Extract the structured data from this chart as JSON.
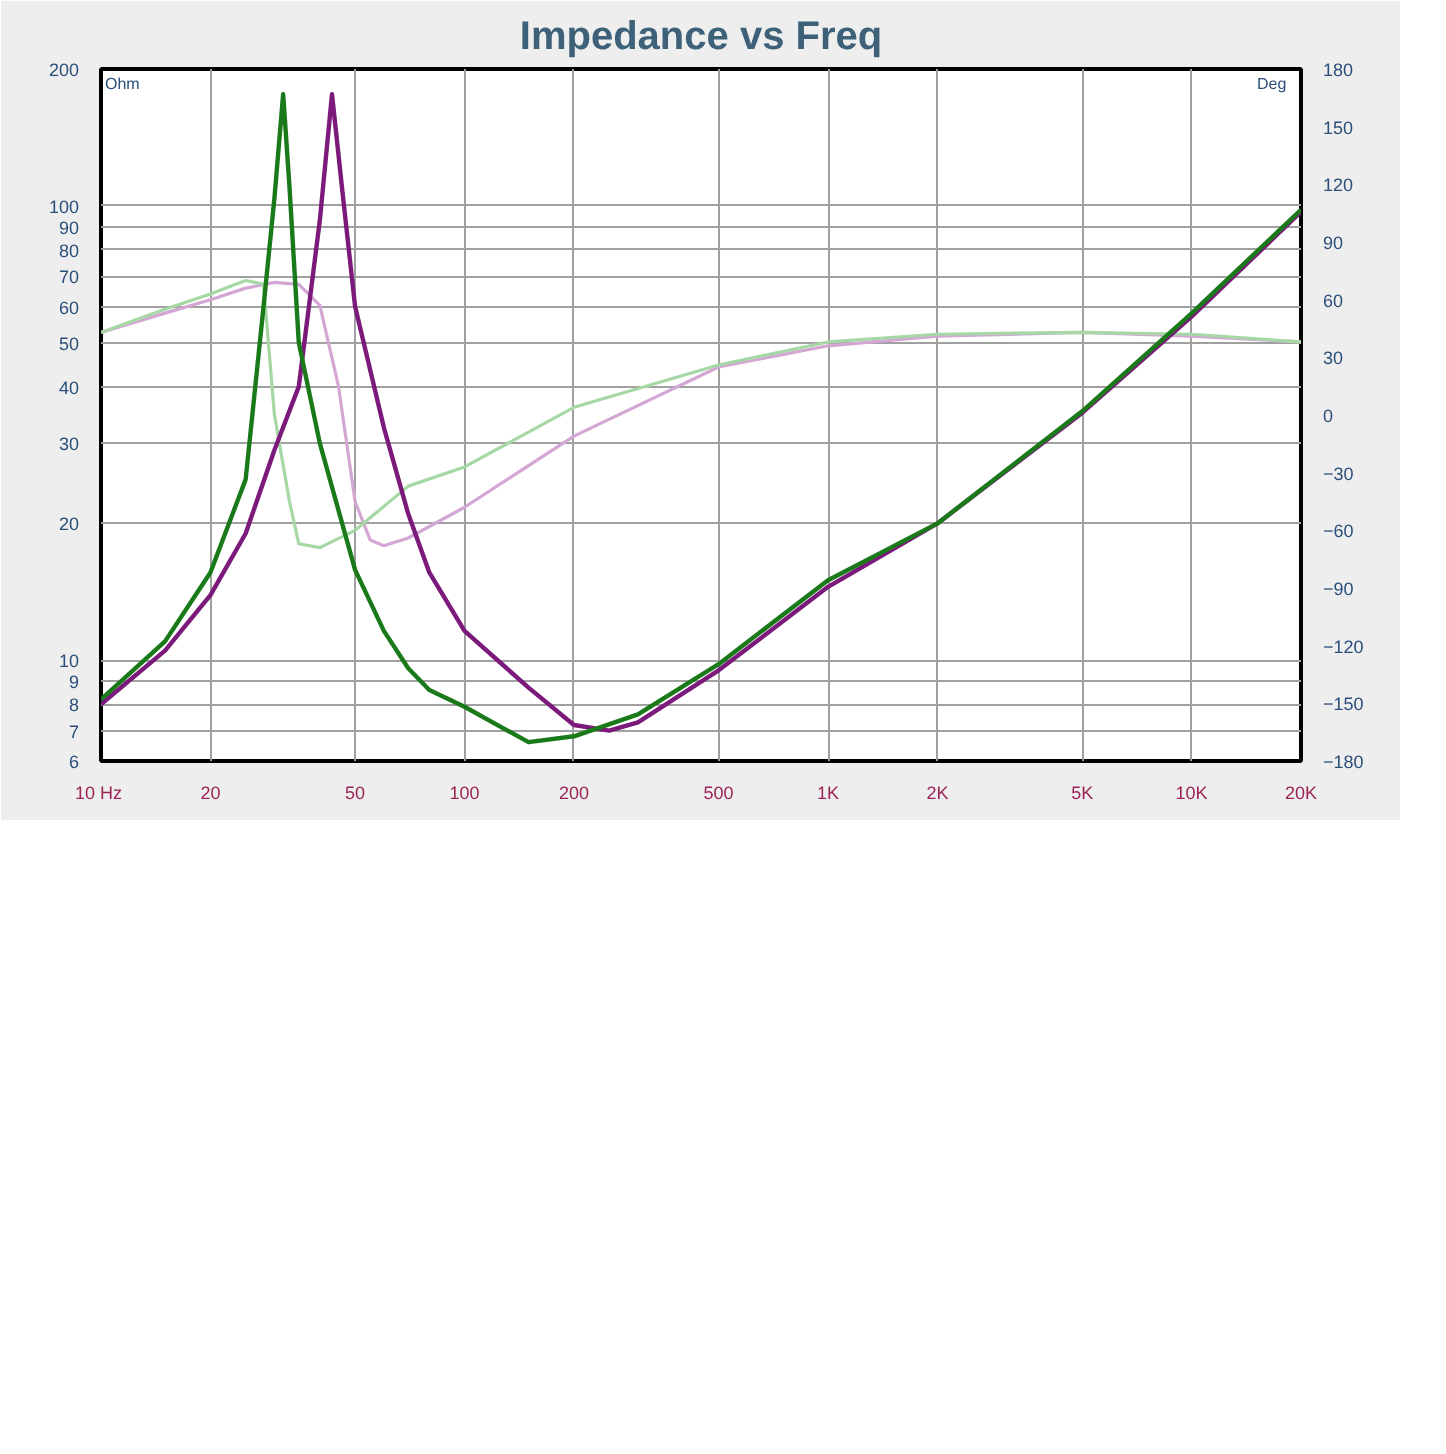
{
  "chart_data": {
    "type": "line",
    "title": "Impedance vs Freq",
    "ylabel": "Ohm",
    "y2label": "Deg",
    "log": "xy",
    "grid": true,
    "marker": "none",
    "line_style": "solid",
    "xlim": [
      10,
      20000
    ],
    "xticks": [
      {
        "value": 10,
        "label": "10  Hz"
      },
      20,
      50,
      100,
      200,
      500,
      {
        "value": 1000,
        "label": "1K"
      },
      {
        "value": 2000,
        "label": "2K"
      },
      {
        "value": 5000,
        "label": "5K"
      },
      {
        "value": 10000,
        "label": "10K"
      },
      {
        "value": 20000,
        "label": "20K"
      }
    ],
    "ylim": [
      6,
      200
    ],
    "yticks": [
      6,
      7,
      8,
      9,
      10,
      20,
      30,
      40,
      50,
      60,
      70,
      80,
      90,
      100,
      200
    ],
    "y2lim": [
      -180,
      180
    ],
    "y2ticks": [
      -180,
      -150,
      -120,
      -90,
      -60,
      -30,
      0,
      30,
      60,
      90,
      120,
      150,
      180
    ],
    "series": [
      {
        "color": "#d4a6d4",
        "axis": "y2",
        "x": [
          10,
          15,
          20,
          25,
          30,
          35,
          40,
          45,
          50,
          55,
          60,
          70,
          100,
          200,
          500,
          1000,
          2000,
          5000,
          10000,
          20000
        ],
        "values": [
          43,
          53,
          60,
          66,
          69,
          68,
          57,
          15,
          -45,
          -65,
          -68,
          -64,
          -48,
          -11,
          25,
          36,
          41,
          43,
          41,
          38
        ]
      },
      {
        "color": "#a6d8a6",
        "axis": "y2",
        "x": [
          10,
          15,
          20,
          25,
          28,
          30,
          33,
          35,
          40,
          50,
          70,
          100,
          200,
          500,
          1000,
          2000,
          5000,
          10000,
          20000
        ],
        "values": [
          43,
          55,
          63,
          70,
          68,
          0,
          -45,
          -67,
          -69,
          -60,
          -37,
          -27,
          4,
          26,
          38,
          42,
          43,
          42,
          38
        ]
      },
      {
        "color": "#7b1a7b",
        "x": [
          10,
          15,
          20,
          25,
          30,
          35,
          40,
          43.2,
          46,
          50,
          60,
          70,
          80,
          100,
          150,
          200,
          250,
          300,
          500,
          1000,
          2000,
          5000,
          10000,
          20000
        ],
        "values": [
          8,
          10.5,
          13.9,
          19,
          29,
          40,
          93,
          176,
          110,
          60,
          32.5,
          21,
          15.6,
          11.6,
          8.7,
          7.2,
          7,
          7.3,
          9.5,
          14.5,
          20,
          35,
          57,
          97
        ]
      },
      {
        "color": "#1a7a1a",
        "x": [
          10,
          15,
          20,
          25,
          28,
          30,
          31.7,
          33,
          35,
          40,
          50,
          60,
          70,
          80,
          100,
          150,
          200,
          300,
          500,
          1000,
          2000,
          5000,
          10000,
          20000
        ],
        "values": [
          8.2,
          11,
          15.6,
          25,
          60,
          104,
          176,
          110,
          50,
          30,
          15.8,
          11.6,
          9.6,
          8.6,
          7.9,
          6.6,
          6.8,
          7.6,
          9.8,
          15,
          20,
          35.3,
          58,
          98
        ]
      }
    ]
  }
}
